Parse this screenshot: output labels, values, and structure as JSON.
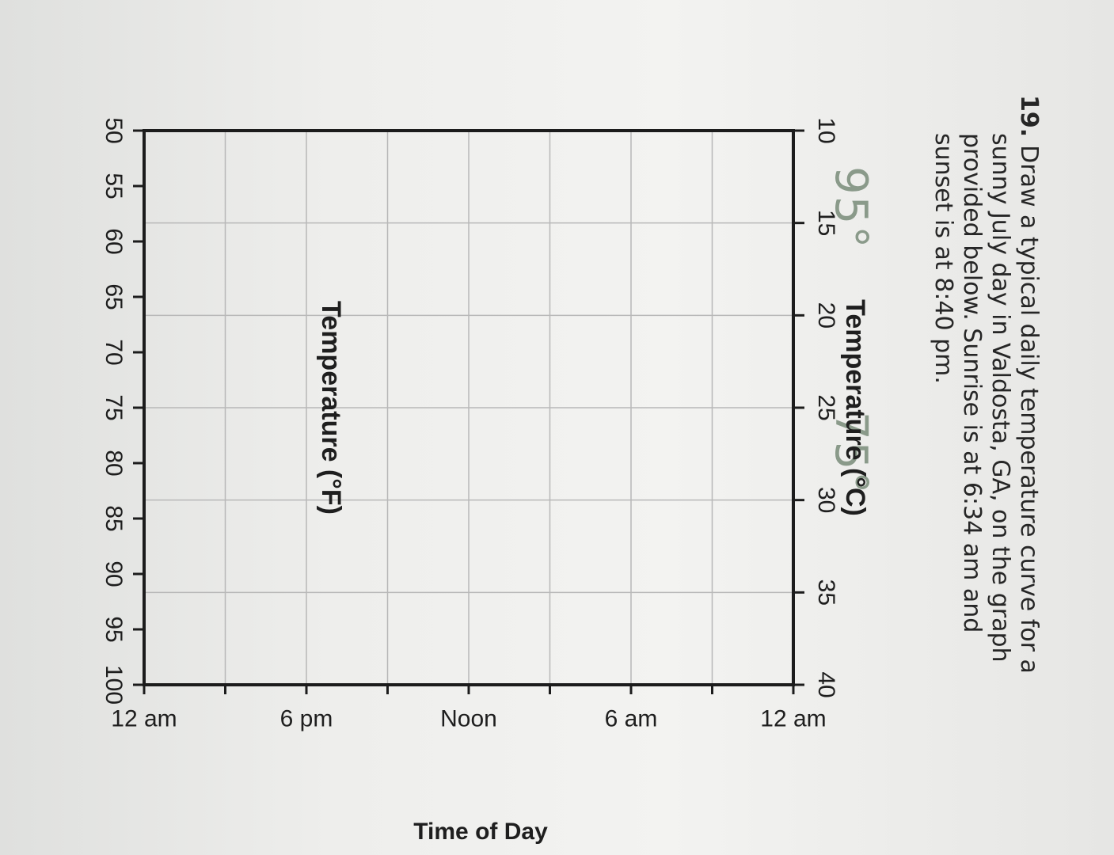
{
  "question": {
    "number": "19.",
    "lines": [
      "Draw a typical daily temperature curve for a",
      "sunny July day in Valdosta, GA, on the graph",
      "provided below.  Sunrise is at 6:34 am and",
      "sunset is at 8:40 pm."
    ]
  },
  "handwriting": {
    "note_1": "95°",
    "note_2": "75°"
  },
  "graph": {
    "x_axis_title": "Time of Day",
    "x_ticks": [
      "12 am",
      "6 am",
      "Noon",
      "6 pm",
      "12 am"
    ],
    "celsius_title": "Temperature (°C)",
    "celsius_ticks": [
      "10",
      "15",
      "20",
      "25",
      "30",
      "35",
      "40"
    ],
    "fahrenheit_title": "Temperature (°F)",
    "fahrenheit_ticks": [
      "50",
      "55",
      "60",
      "65",
      "70",
      "75",
      "80",
      "85",
      "90",
      "95",
      "100"
    ],
    "colors": {
      "grid": "#b8b8b8",
      "frame": "#1c1c1c",
      "text": "#1e1e1e"
    }
  }
}
